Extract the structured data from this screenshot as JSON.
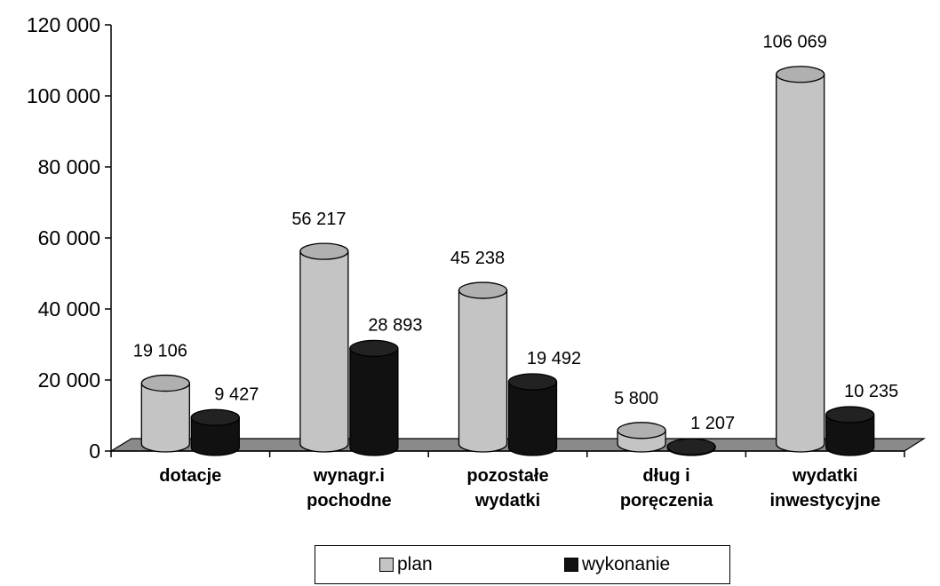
{
  "chart_data": {
    "type": "bar",
    "style": "3d-cylinder",
    "categories": [
      [
        "dotacje"
      ],
      [
        "wynagr.i",
        "pochodne"
      ],
      [
        "pozostałe",
        "wydatki"
      ],
      [
        "dług i",
        "poręczenia"
      ],
      [
        "wydatki",
        "inwestycyjne"
      ]
    ],
    "series": [
      {
        "name": "plan",
        "values": [
          19106,
          56217,
          45238,
          5800,
          106069
        ],
        "labels": [
          "19 106",
          "56 217",
          "45 238",
          "5 800",
          "106 069"
        ]
      },
      {
        "name": "wykonanie",
        "values": [
          9427,
          28893,
          19492,
          1207,
          10235
        ],
        "labels": [
          "9 427",
          "28 893",
          "19 492",
          "1 207",
          "10 235"
        ]
      }
    ],
    "y_ticks": [
      0,
      20000,
      40000,
      60000,
      80000,
      100000,
      120000
    ],
    "y_tick_labels": [
      "0",
      "20 000",
      "40 000",
      "60 000",
      "80 000",
      "100 000",
      "120 000"
    ],
    "ylim": [
      0,
      120000
    ],
    "title": "",
    "xlabel": "",
    "ylabel": "",
    "grid": false,
    "legend_position": "bottom",
    "colors": {
      "plan": "#c4c4c4",
      "wykonanie": "#111111",
      "floor": "#8a8a8a"
    }
  },
  "legend": {
    "plan_label": "plan",
    "wykonanie_label": "wykonanie"
  }
}
